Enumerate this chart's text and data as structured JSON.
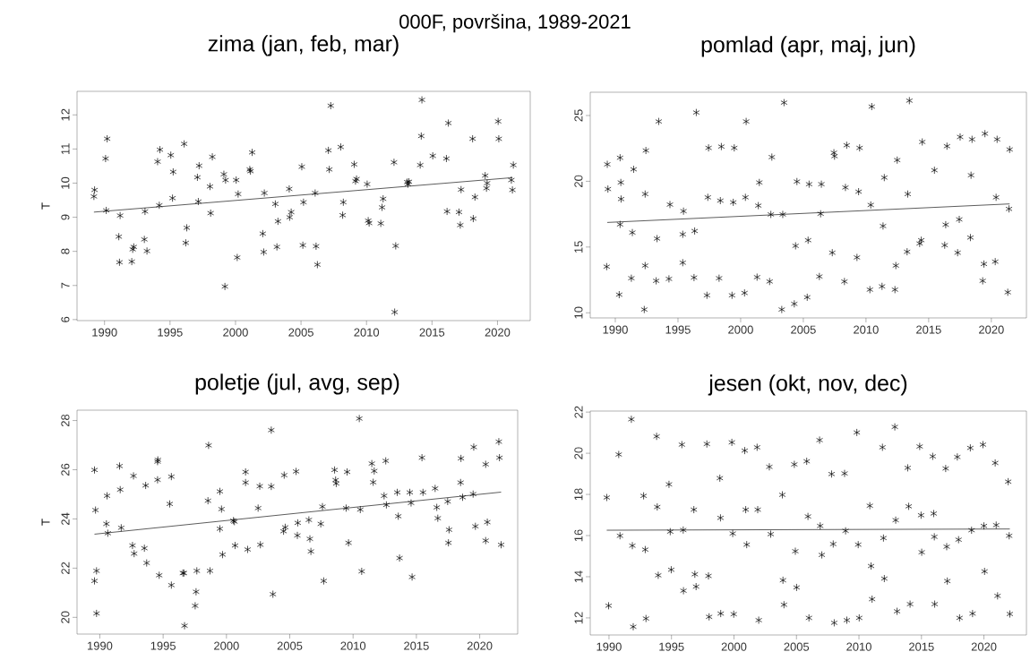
{
  "chart_data": [
    {
      "type": "scatter",
      "title": "zima (jan, feb, mar)",
      "ylabel": "T",
      "annotations": [
        "000F, površina, 1989-2021"
      ],
      "xlim": [
        1987.9,
        2022.5
      ],
      "ylim": [
        5.97,
        12.69
      ],
      "xticks": [
        1990,
        1995,
        2000,
        2005,
        2010,
        2015,
        2020
      ],
      "yticks": [
        6,
        7,
        8,
        9,
        10,
        11,
        12
      ],
      "series": [
        {
          "type": "scatter",
          "marker": "cross",
          "color": "#000000",
          "x": [
            1989.19,
            1989.24,
            1990.08,
            1990.2,
            1990.13,
            1991.09,
            1991.19,
            1991.14,
            1992.08,
            1992.15,
            1992.23,
            1993.04,
            1993.09,
            1993.24,
            1994.05,
            1994.18,
            1994.23,
            1995.06,
            1995.19,
            1995.24,
            1996.08,
            1996.2,
            1996.28,
            1997.09,
            1997.16,
            1997.22,
            1998.05,
            1998.1,
            1998.23,
            1999.11,
            1999.19,
            1999.24,
            2000.05,
            2000.13,
            2000.2,
            2001.09,
            2001.14,
            2001.27,
            2002.08,
            2002.15,
            2002.2,
            2003.04,
            2003.16,
            2003.24,
            2004.1,
            2004.13,
            2004.25,
            2005.06,
            2005.14,
            2005.19,
            2006.08,
            2006.15,
            2006.25,
            2007.09,
            2007.16,
            2007.27,
            2008.03,
            2008.18,
            2008.23,
            2009.06,
            2009.16,
            2009.24,
            2010.05,
            2010.13,
            2010.2,
            2011.09,
            2011.19,
            2011.27,
            2012.1,
            2012.15,
            2012.23,
            2013.11,
            2013.16,
            2013.24,
            2014.1,
            2014.18,
            2014.23,
            2015.06,
            2016.1,
            2016.15,
            2016.25,
            2017.06,
            2017.16,
            2017.22,
            2018.1,
            2018.15,
            2018.28,
            2019.06,
            2019.16,
            2019.21,
            2020.05,
            2020.1,
            2021.06,
            2021.14,
            2021.21
          ],
          "values": [
            9.61,
            9.8,
            10.72,
            11.3,
            9.2,
            8.43,
            9.05,
            7.68,
            7.7,
            8.06,
            8.13,
            8.35,
            9.17,
            8.01,
            10.63,
            9.35,
            10.98,
            10.82,
            9.56,
            10.33,
            11.15,
            8.25,
            8.69,
            10.17,
            9.46,
            10.51,
            9.9,
            9.12,
            10.77,
            10.26,
            6.97,
            10.09,
            10.09,
            7.82,
            9.68,
            10.4,
            10.35,
            10.9,
            8.52,
            7.98,
            9.71,
            9.39,
            8.13,
            8.88,
            9.83,
            9.0,
            9.15,
            10.48,
            8.18,
            9.44,
            9.71,
            8.15,
            7.61,
            10.96,
            10.4,
            12.27,
            11.06,
            9.06,
            9.44,
            10.55,
            10.06,
            10.12,
            9.97,
            8.9,
            8.83,
            8.82,
            9.29,
            9.54,
            10.61,
            6.22,
            8.16,
            10.03,
            9.97,
            10.04,
            10.53,
            11.38,
            12.44,
            10.8,
            10.72,
            9.17,
            11.76,
            9.15,
            8.77,
            9.81,
            11.3,
            8.96,
            9.59,
            10.22,
            9.85,
            10.0,
            11.81,
            11.3,
            10.09,
            9.8,
            10.53
          ]
        },
        {
          "type": "line",
          "marker": "none",
          "line_style": "solid",
          "color": "#333333",
          "x": [
            1989.19,
            2021.14
          ],
          "values": [
            9.15,
            10.16
          ]
        }
      ]
    },
    {
      "type": "scatter",
      "title": "pomlad (apr, maj, jun)",
      "xlim": [
        1988.0,
        2022.8
      ],
      "ylim": [
        9.61,
        26.77
      ],
      "xticks": [
        1990,
        1995,
        2000,
        2005,
        2010,
        2015,
        2020
      ],
      "yticks": [
        10,
        15,
        20,
        25
      ],
      "series": [
        {
          "type": "scatter",
          "marker": "cross",
          "color": "#000000",
          "x": [
            1989.36,
            1989.41,
            1989.31,
            1990.38,
            1990.44,
            1990.46,
            1990.38,
            1990.31,
            1991.46,
            1991.36,
            1991.28,
            1992.44,
            1992.38,
            1992.38,
            1992.31,
            1993.46,
            1993.33,
            1993.26,
            1994.36,
            1994.28,
            1995.44,
            1995.38,
            1995.38,
            1996.46,
            1996.33,
            1996.28,
            1997.44,
            1997.38,
            1997.31,
            1998.46,
            1998.38,
            1998.28,
            1999.49,
            1999.41,
            1999.31,
            2000.44,
            2000.38,
            2000.31,
            2001.49,
            2001.41,
            2001.31,
            2002.49,
            2002.41,
            2002.31,
            2003.46,
            2003.36,
            2003.28,
            2004.49,
            2004.38,
            2004.28,
            2005.46,
            2005.38,
            2005.31,
            2006.44,
            2006.38,
            2006.28,
            2007.44,
            2007.49,
            2007.31,
            2008.46,
            2008.36,
            2008.28,
            2009.49,
            2009.41,
            2009.28,
            2010.46,
            2010.38,
            2010.31,
            2011.46,
            2011.36,
            2011.28,
            2012.49,
            2012.38,
            2012.31,
            2013.46,
            2013.33,
            2013.28,
            2014.49,
            2014.41,
            2014.28,
            2015.46,
            2016.46,
            2016.36,
            2016.28,
            2017.51,
            2017.44,
            2017.31,
            2018.46,
            2018.38,
            2018.33,
            2019.49,
            2019.41,
            2019.31,
            2020.46,
            2020.38,
            2020.31,
            2021.46,
            2021.41,
            2021.31
          ],
          "values": [
            21.29,
            19.41,
            13.51,
            21.79,
            19.91,
            18.65,
            16.72,
            11.38,
            20.91,
            16.1,
            12.63,
            22.34,
            19.03,
            13.59,
            10.25,
            24.55,
            15.64,
            12.43,
            18.23,
            12.58,
            17.73,
            15.97,
            13.81,
            25.23,
            16.22,
            12.68,
            22.54,
            18.78,
            11.33,
            22.64,
            18.53,
            12.63,
            22.54,
            18.4,
            11.33,
            24.55,
            18.78,
            11.51,
            19.91,
            18.15,
            12.71,
            21.84,
            17.48,
            12.38,
            25.98,
            17.48,
            10.25,
            19.98,
            15.09,
            10.68,
            19.78,
            15.52,
            11.18,
            19.78,
            17.53,
            12.76,
            22.17,
            21.91,
            14.57,
            22.74,
            19.53,
            12.38,
            22.54,
            19.21,
            14.21,
            25.68,
            18.2,
            11.76,
            20.28,
            16.6,
            12.01,
            21.61,
            13.59,
            11.76,
            26.13,
            19.03,
            14.64,
            22.99,
            15.52,
            15.27,
            20.84,
            22.67,
            16.7,
            15.14,
            23.37,
            17.1,
            14.57,
            23.19,
            20.46,
            15.72,
            23.62,
            13.71,
            12.43,
            23.19,
            18.78,
            13.89,
            22.42,
            17.9,
            11.56
          ]
        },
        {
          "type": "line",
          "marker": "none",
          "line_style": "solid",
          "color": "#333333",
          "x": [
            1989.36,
            2021.46
          ],
          "values": [
            16.87,
            18.28
          ]
        }
      ]
    },
    {
      "type": "scatter",
      "title": "poletje (jul, avg, sep)",
      "ylabel": "T",
      "xlim": [
        1988.2,
        2023.0
      ],
      "ylim": [
        19.32,
        28.42
      ],
      "xticks": [
        1990,
        1995,
        2000,
        2005,
        2010,
        2015,
        2020
      ],
      "yticks": [
        20,
        22,
        24,
        26,
        28
      ],
      "series": [
        {
          "type": "scatter",
          "marker": "cross",
          "color": "#000000",
          "x": [
            1989.58,
            1989.66,
            1989.58,
            1989.74,
            1989.74,
            1990.57,
            1990.52,
            1990.63,
            1991.56,
            1991.61,
            1991.69,
            1992.58,
            1992.66,
            1992.71,
            1993.52,
            1993.62,
            1993.7,
            1994.56,
            1994.58,
            1994.56,
            1994.69,
            1995.52,
            1995.65,
            1995.65,
            1996.56,
            1996.64,
            1996.69,
            1997.66,
            1997.6,
            1997.53,
            1998.59,
            1998.54,
            1998.7,
            1999.48,
            1999.61,
            1999.48,
            1999.69,
            2000.55,
            2000.63,
            2000.68,
            2001.51,
            2001.51,
            2001.67,
            2002.5,
            2002.63,
            2002.68,
            2003.54,
            2003.54,
            2003.67,
            2004.56,
            2004.51,
            2004.64,
            2005.5,
            2005.63,
            2005.6,
            2006.51,
            2006.59,
            2006.67,
            2007.58,
            2007.45,
            2007.68,
            2008.54,
            2008.62,
            2008.67,
            2009.53,
            2009.45,
            2009.64,
            2010.49,
            2010.57,
            2010.68,
            2011.48,
            2011.59,
            2011.67,
            2012.45,
            2012.58,
            2012.63,
            2013.49,
            2013.57,
            2013.67,
            2014.48,
            2014.58,
            2014.66,
            2015.44,
            2015.52,
            2016.48,
            2016.61,
            2016.69,
            2017.47,
            2017.58,
            2017.53,
            2018.52,
            2018.49,
            2018.65,
            2019.53,
            2019.48,
            2019.66,
            2020.47,
            2020.6,
            2020.47,
            2021.51,
            2021.56,
            2021.69
          ],
          "values": [
            25.99,
            24.36,
            21.48,
            21.89,
            20.16,
            24.94,
            23.8,
            23.42,
            26.15,
            25.19,
            23.64,
            22.92,
            25.75,
            22.59,
            22.81,
            25.36,
            22.21,
            26.33,
            26.4,
            25.59,
            21.71,
            24.61,
            25.72,
            21.31,
            21.8,
            21.8,
            19.66,
            21.89,
            21.04,
            20.47,
            26.99,
            24.74,
            21.89,
            25.12,
            24.4,
            23.6,
            22.55,
            23.93,
            23.89,
            22.92,
            25.91,
            25.48,
            22.76,
            24.44,
            25.33,
            22.95,
            27.61,
            25.32,
            20.94,
            25.78,
            23.5,
            23.66,
            25.93,
            23.84,
            23.33,
            23.96,
            23.19,
            22.68,
            24.5,
            23.8,
            21.48,
            25.99,
            25.58,
            25.44,
            25.91,
            24.44,
            23.03,
            28.08,
            24.38,
            21.87,
            26.25,
            25.49,
            25.95,
            24.94,
            26.36,
            24.57,
            25.08,
            24.11,
            22.41,
            25.08,
            24.65,
            21.64,
            26.49,
            25.08,
            25.24,
            24.47,
            24.03,
            24.71,
            23.56,
            23.03,
            26.46,
            25.48,
            24.88,
            26.92,
            25.01,
            23.7,
            26.22,
            23.87,
            23.12,
            27.14,
            26.49,
            22.95
          ]
        },
        {
          "type": "line",
          "marker": "none",
          "line_style": "solid",
          "color": "#333333",
          "x": [
            1989.58,
            2021.69
          ],
          "values": [
            23.38,
            25.09
          ]
        }
      ]
    },
    {
      "type": "scatter",
      "title": "jesen (okt, nov, dec)",
      "xlim": [
        1988.5,
        2023.4
      ],
      "ylim": [
        11.17,
        22.05
      ],
      "xticks": [
        1990,
        1995,
        2000,
        2005,
        2010,
        2015,
        2020
      ],
      "yticks": [
        12,
        14,
        16,
        18,
        20,
        22
      ],
      "series": [
        {
          "type": "scatter",
          "marker": "cross",
          "color": "#000000",
          "x": [
            1989.82,
            1989.97,
            1990.78,
            1990.88,
            1991.79,
            1991.87,
            1991.94,
            1992.77,
            1992.9,
            1992.96,
            1993.81,
            1993.86,
            1993.94,
            1994.8,
            1994.9,
            1994.98,
            1995.83,
            1995.94,
            1995.96,
            1996.79,
            1996.87,
            1996.97,
            1997.83,
            1997.96,
            1998.01,
            1998.87,
            1998.92,
            1998.94,
            1999.83,
            1999.9,
            1999.98,
            2000.86,
            2000.94,
            2001.02,
            2001.85,
            2001.9,
            2001.98,
            2002.83,
            2002.94,
            2003.87,
            2003.92,
            2004.0,
            2004.83,
            2004.91,
            2005.01,
            2005.82,
            2005.92,
            2006.0,
            2006.85,
            2006.9,
            2007.03,
            2007.81,
            2007.94,
            2008.02,
            2008.85,
            2008.93,
            2009.03,
            2009.83,
            2009.94,
            2010.02,
            2010.87,
            2010.97,
            2011.05,
            2011.88,
            2011.96,
            2012.03,
            2012.87,
            2012.94,
            2013.05,
            2013.9,
            2013.98,
            2014.09,
            2014.86,
            2014.97,
            2015.02,
            2015.9,
            2015.98,
            2016.03,
            2016.06,
            2016.94,
            2017.02,
            2017.07,
            2017.87,
            2017.97,
            2018.05,
            2018.91,
            2019.01,
            2019.09,
            2019.92,
            2020.0,
            2020.05,
            2020.9,
            2020.98,
            2021.09,
            2021.94,
            2022.02,
            2022.07
          ],
          "values": [
            17.85,
            12.59,
            19.94,
            15.99,
            21.65,
            15.51,
            11.57,
            17.93,
            15.32,
            11.97,
            20.82,
            17.39,
            14.07,
            18.49,
            16.19,
            14.34,
            20.42,
            16.27,
            13.32,
            17.26,
            14.12,
            13.52,
            20.45,
            14.04,
            12.05,
            18.79,
            16.86,
            12.21,
            20.53,
            16.1,
            12.18,
            20.13,
            17.26,
            15.56,
            20.29,
            17.26,
            11.89,
            19.34,
            16.07,
            17.98,
            13.83,
            12.64,
            19.46,
            15.24,
            13.48,
            19.61,
            16.93,
            12.0,
            20.64,
            16.47,
            15.06,
            18.99,
            15.59,
            11.76,
            19.02,
            16.23,
            11.89,
            21.01,
            15.56,
            12.0,
            17.45,
            14.52,
            12.91,
            20.29,
            15.88,
            13.91,
            21.28,
            16.75,
            12.32,
            19.29,
            17.42,
            12.67,
            20.33,
            16.99,
            15.19,
            19.85,
            17.07,
            15.94,
            12.67,
            19.26,
            15.46,
            13.79,
            19.82,
            15.8,
            12.0,
            20.26,
            16.26,
            12.21,
            20.42,
            16.47,
            14.26,
            19.53,
            16.51,
            13.07,
            18.62,
            15.99,
            12.19
          ]
        },
        {
          "type": "line",
          "marker": "none",
          "line_style": "solid",
          "color": "#333333",
          "x": [
            1989.82,
            2022.07
          ],
          "values": [
            16.26,
            16.32
          ]
        }
      ]
    }
  ]
}
